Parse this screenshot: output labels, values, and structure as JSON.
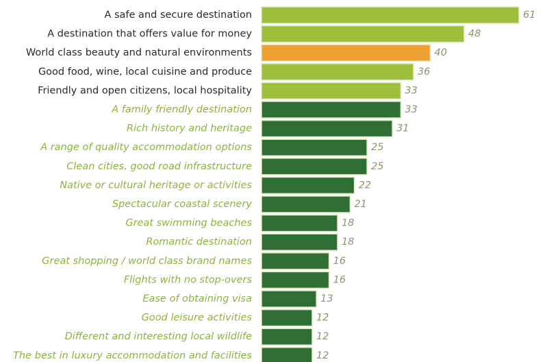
{
  "chart_data": {
    "type": "bar",
    "orientation": "horizontal",
    "categories": [
      "A safe and secure destination",
      "A destination that offers value for money",
      "World class beauty and natural environments",
      "Good food, wine, local cuisine and produce",
      "Friendly and open citizens, local hospitality",
      "A family friendly destination",
      "Rich history and heritage",
      "A range of quality accommodation options",
      "Clean cities, good road infrastructure",
      "Native or cultural heritage or activities",
      "Spectacular coastal scenery",
      "Great swimming beaches",
      "Romantic destination",
      "Great shopping / world class brand names",
      "Flights with no stop-overs",
      "Ease of obtaining visa",
      "Good leisure activities",
      "Different and interesting local wildlife",
      "The best in luxury accommodation and facilities"
    ],
    "values": [
      61,
      48,
      40,
      36,
      33,
      33,
      31,
      25,
      25,
      22,
      21,
      18,
      18,
      16,
      16,
      13,
      12,
      12,
      12
    ],
    "colors": [
      "#9dbf3c",
      "#9dbf3c",
      "#f0a030",
      "#9dbf3c",
      "#9dbf3c",
      "#2f6e35",
      "#2f6e35",
      "#2f6e35",
      "#2f6e35",
      "#2f6e35",
      "#2f6e35",
      "#2f6e35",
      "#2f6e35",
      "#2f6e35",
      "#2f6e35",
      "#2f6e35",
      "#2f6e35",
      "#2f6e35",
      "#2f6e35"
    ]
  }
}
